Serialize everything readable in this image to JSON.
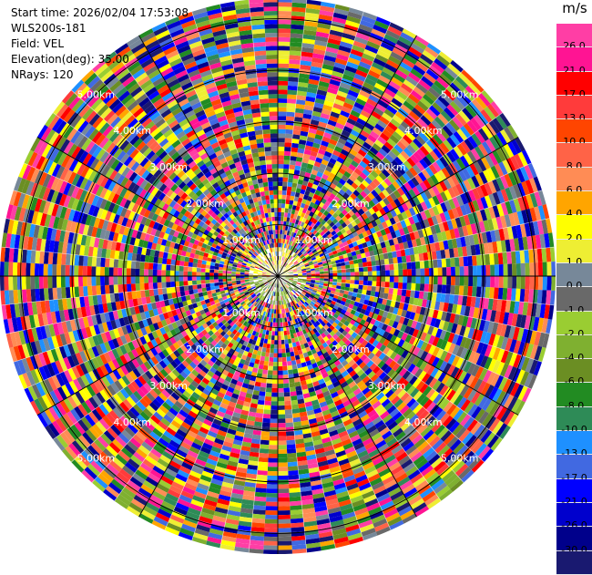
{
  "header": {
    "start_time": "Start time: 2026/02/04 17:53:08",
    "instrument": "WLS200s-181",
    "field": "Field: VEL",
    "elevation": "Elevation(deg): 35.00",
    "nrays": "NRays: 120"
  },
  "colorbar": {
    "unit": "m/s",
    "bins": [
      {
        "label": "26.0",
        "color": "#ff3ea5"
      },
      {
        "label": "21.0",
        "color": "#ff1493"
      },
      {
        "label": "17.0",
        "color": "#ff0000"
      },
      {
        "label": "13.0",
        "color": "#ff3b3b"
      },
      {
        "label": "10.0",
        "color": "#ff4500"
      },
      {
        "label": "8.0",
        "color": "#ff6347"
      },
      {
        "label": "6.0",
        "color": "#ff8c55"
      },
      {
        "label": "4.0",
        "color": "#ffa500"
      },
      {
        "label": "2.0",
        "color": "#ffff00"
      },
      {
        "label": "1.0",
        "color": "#eeee33"
      },
      {
        "label": "0.0",
        "color": "#778899"
      },
      {
        "label": "-1.0",
        "color": "#696969"
      },
      {
        "label": "-2.0",
        "color": "#9acd32"
      },
      {
        "label": "-4.0",
        "color": "#7fb030"
      },
      {
        "label": "-6.0",
        "color": "#6b8e23"
      },
      {
        "label": "-8.0",
        "color": "#228b22"
      },
      {
        "label": "-10.0",
        "color": "#2e8b57"
      },
      {
        "label": "-13.0",
        "color": "#1e90ff"
      },
      {
        "label": "-17.0",
        "color": "#4169e1"
      },
      {
        "label": "-21.0",
        "color": "#0000ff"
      },
      {
        "label": "-26.0",
        "color": "#0000cd"
      },
      {
        "label": "-30.0",
        "color": "#00008b"
      },
      {
        "label": "",
        "color": "#191970"
      }
    ]
  },
  "chart_data": {
    "type": "heatmap",
    "projection": "polar-ppi",
    "nrays": 120,
    "range_rings_km": [
      1,
      2,
      3,
      4,
      5
    ],
    "range_ring_labels": [
      "1.00km",
      "2.00km",
      "3.00km",
      "4.00km",
      "5.00km"
    ],
    "max_range_km": 5.4,
    "spokes_deg": [
      0,
      30,
      60,
      90,
      120,
      150,
      180,
      210,
      240,
      270,
      300,
      330
    ],
    "grid": true,
    "legend": "right"
  }
}
